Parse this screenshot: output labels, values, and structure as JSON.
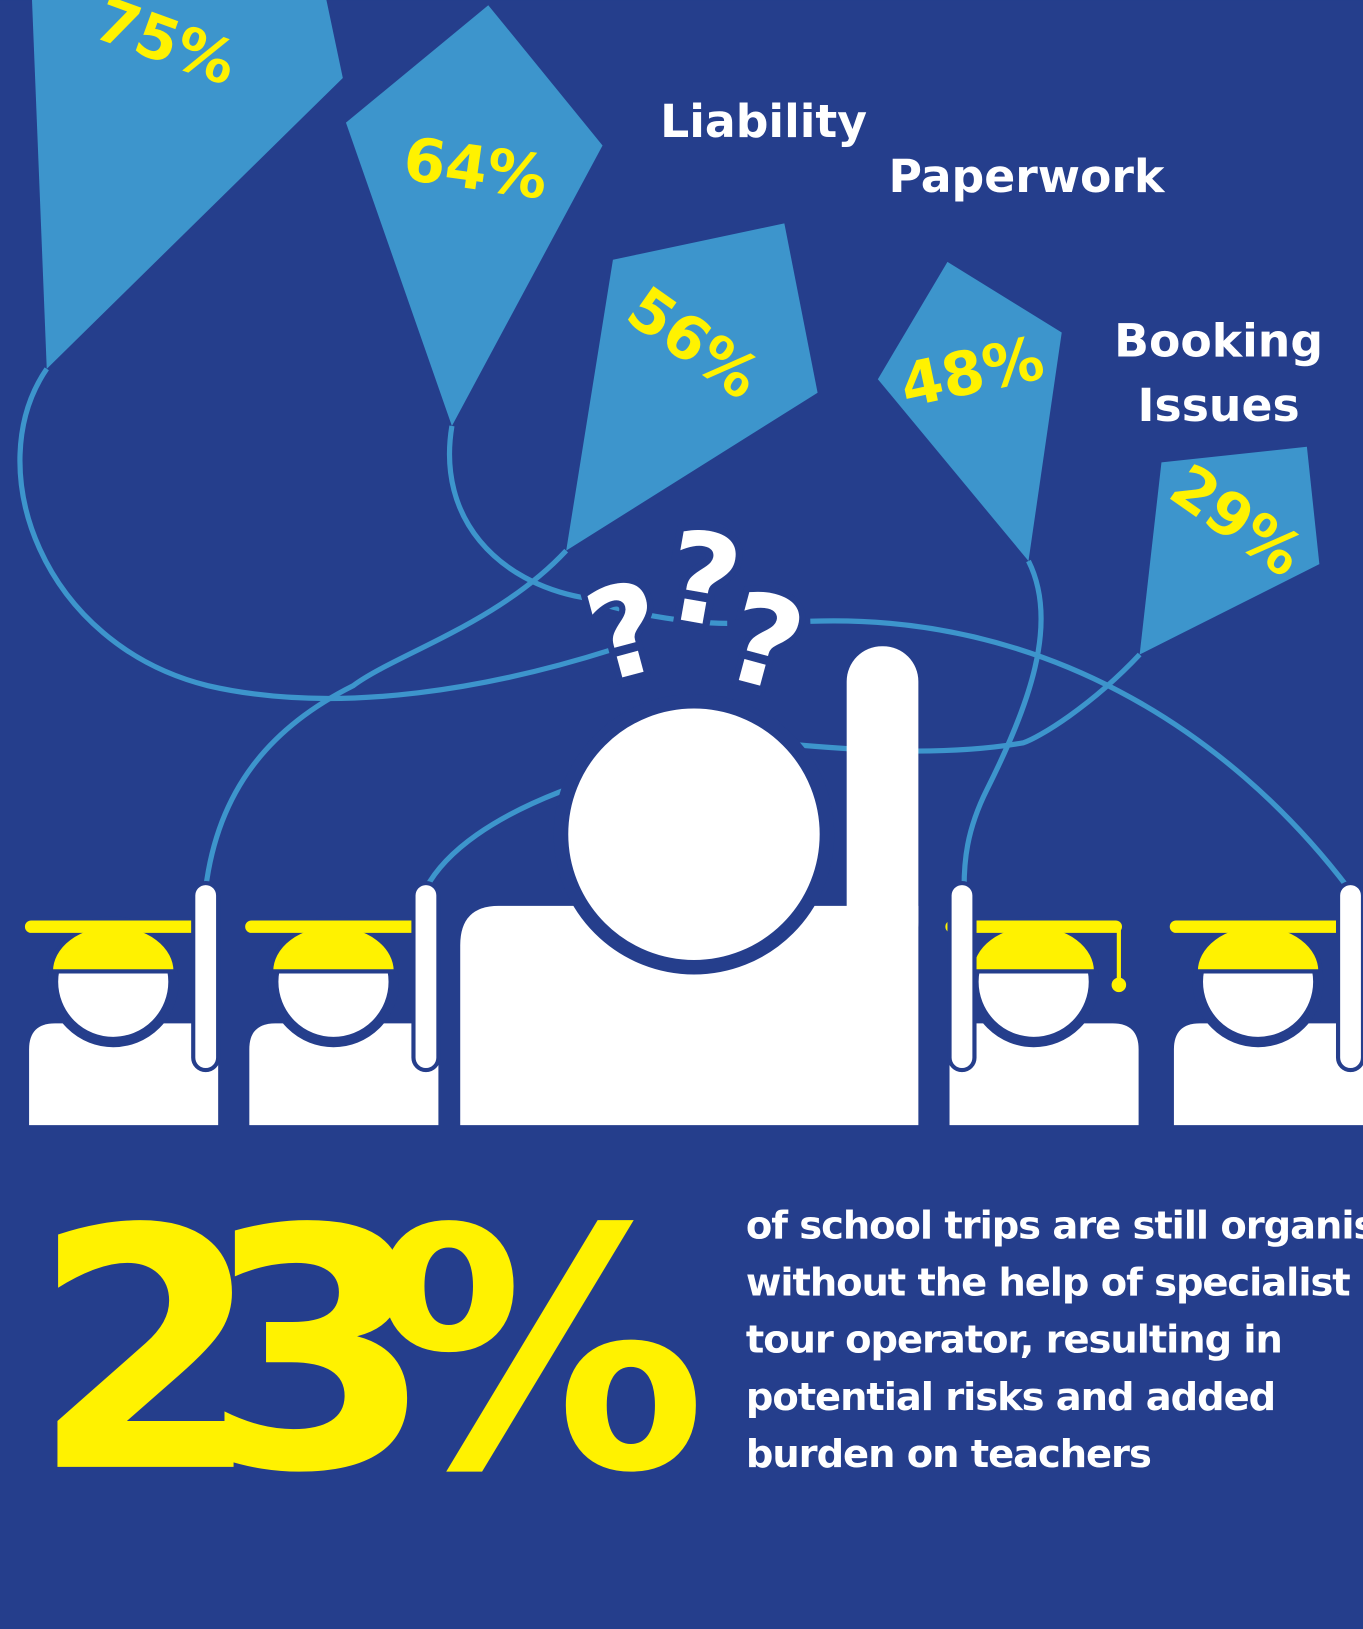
{
  "kites": [
    "75%",
    "64%",
    "56%",
    "48%",
    "29%"
  ],
  "labels": {
    "liability": "Liability",
    "paperwork": "Paperwork",
    "booking": [
      "Booking",
      "Issues"
    ]
  },
  "question_marks": [
    "?",
    "?",
    "?"
  ],
  "stat": {
    "value": "23%",
    "description": [
      "of school trips are still organised",
      "without the help of specialist",
      "tour operator, resulting in",
      "potential risks and added",
      "burden on teachers"
    ]
  }
}
